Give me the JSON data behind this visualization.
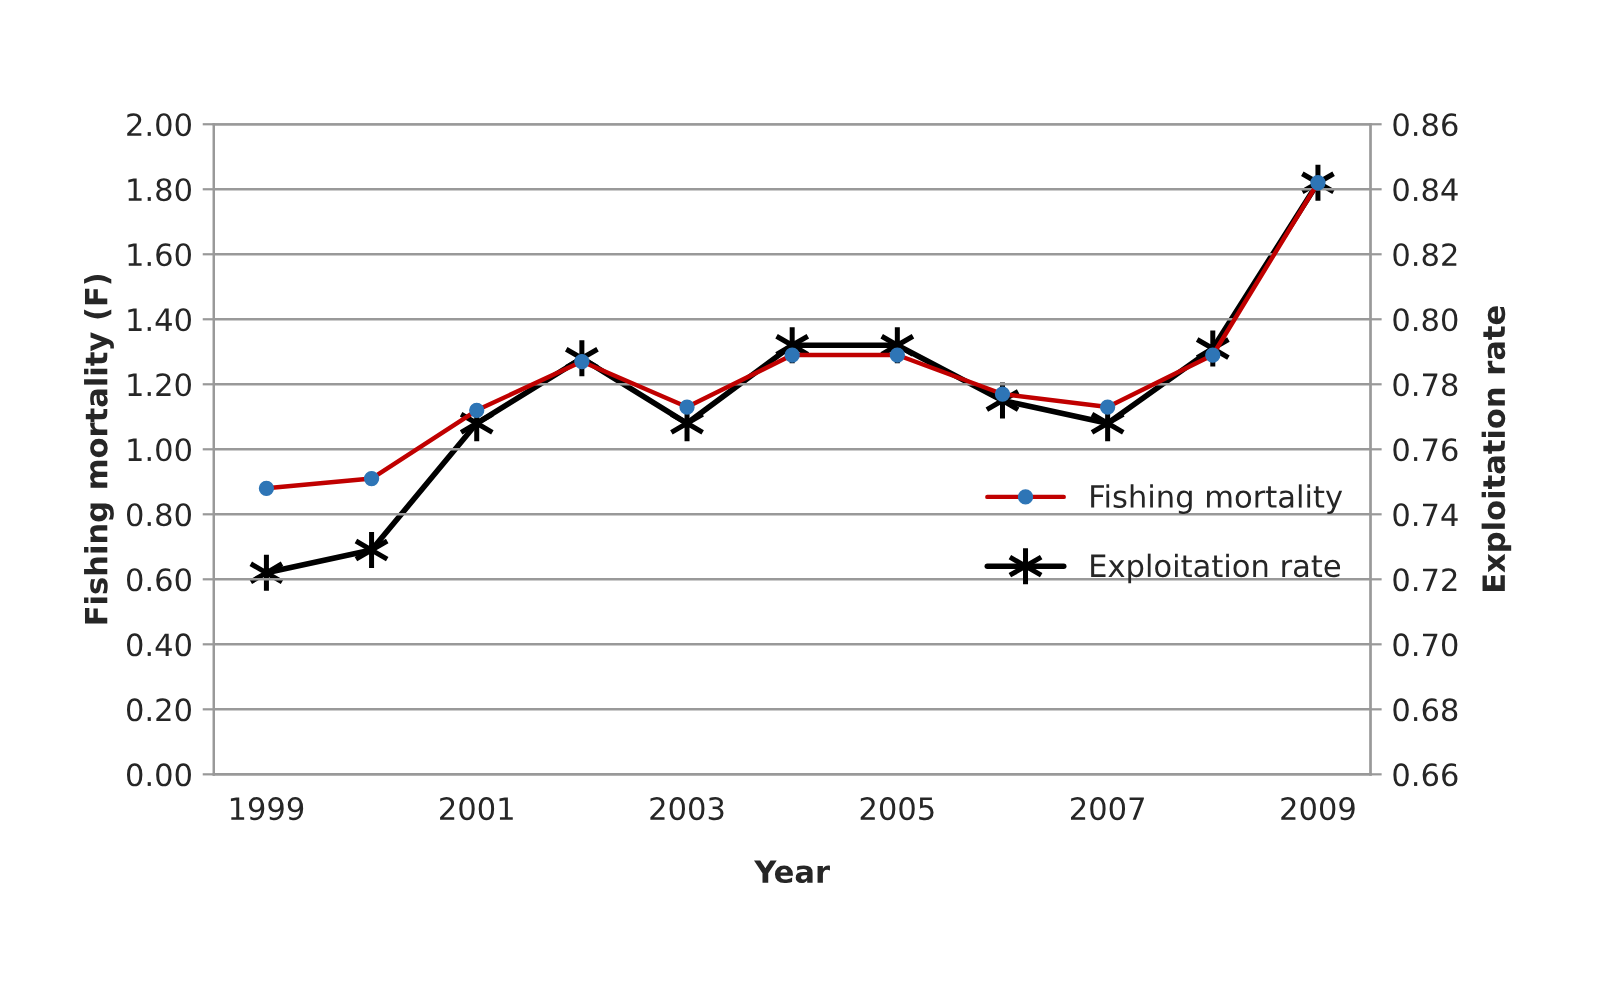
{
  "chart_data": {
    "type": "line",
    "categories": [
      "1999",
      null,
      "2001",
      null,
      "2003",
      null,
      "2005",
      null,
      "2007",
      null,
      "2009"
    ],
    "series": [
      {
        "name": "Fishing mortality",
        "color": "#c00000",
        "marker": "circle",
        "values": [
          0.88,
          0.91,
          1.12,
          1.27,
          1.13,
          1.29,
          1.29,
          1.17,
          1.13,
          1.29,
          1.82
        ]
      },
      {
        "name": "Exploitation rate",
        "color": "#000000",
        "marker": "cross",
        "axis": "y2",
        "values": [
          0.722,
          0.729,
          0.768,
          0.788,
          0.768,
          0.792,
          0.792,
          0.775,
          0.768,
          0.791,
          0.842
        ]
      }
    ],
    "xlabel": "Year",
    "ylabel": "Fishing mortality (F)",
    "y2label": "Exploitation rate",
    "ylim": [
      0,
      2
    ],
    "yticks": [
      {
        "value": 0,
        "label": "0.00"
      },
      {
        "value": 0.2,
        "label": "0.20"
      },
      {
        "value": 0.4,
        "label": "0.40"
      },
      {
        "value": 0.6,
        "label": "0.60"
      },
      {
        "value": 0.8,
        "label": "0.80"
      },
      {
        "value": 1,
        "label": "1.00"
      },
      {
        "value": 1.2,
        "label": "1.20"
      },
      {
        "value": 1.4,
        "label": "1.40"
      },
      {
        "value": 1.6,
        "label": "1.60"
      },
      {
        "value": 1.8,
        "label": "1.80"
      },
      {
        "value": 2,
        "label": "2.00"
      }
    ],
    "y2lim": [
      0.66,
      0.86
    ],
    "y2ticks": [
      0.66,
      0.68,
      {
        "value": 0.7,
        "label": "0.70"
      },
      0.72,
      0.74,
      0.76,
      0.78,
      {
        "value": 0.8,
        "label": "0.80"
      },
      0.82,
      0.84,
      0.86
    ],
    "grid": "y",
    "legend": "right"
  }
}
